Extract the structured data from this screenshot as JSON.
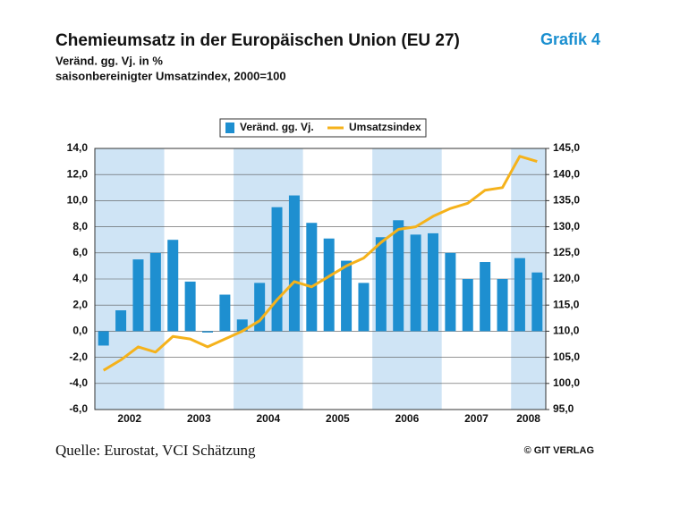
{
  "chart_data": {
    "type": "bar_line",
    "title": "Chemieumsatz in der Europäischen Union (EU 27)",
    "badge": "Grafik 4",
    "subtitle": [
      "Veränd. gg. Vj. in %",
      "saisonbereinigter Umsatzindex, 2000=100"
    ],
    "years": [
      "2002",
      "2003",
      "2004",
      "2005",
      "2006",
      "2007",
      "2008"
    ],
    "categories": [
      null,
      null,
      null,
      null,
      null,
      null,
      null,
      null,
      null,
      null,
      null,
      null,
      null,
      null,
      null,
      null,
      null,
      null,
      null,
      null,
      null,
      null,
      null,
      null,
      null,
      null
    ],
    "series": [
      {
        "name": "Veränd. gg. Vj.",
        "color": "#1e8fd0",
        "type": "bar",
        "values": [
          -1.1,
          1.6,
          5.5,
          6.0,
          7.0,
          3.8,
          -0.1,
          2.8,
          0.9,
          3.7,
          9.5,
          10.4,
          8.3,
          7.1,
          5.4,
          3.7,
          7.2,
          8.5,
          7.4,
          7.5,
          6.0,
          4.0,
          5.3,
          4.0,
          5.6,
          4.5
        ]
      },
      {
        "name": "Umsatzsindex",
        "color": "#f5b21b",
        "type": "line",
        "axis": "y2",
        "values": [
          102.5,
          104.5,
          107,
          106,
          109,
          108.5,
          107,
          108.5,
          110,
          112,
          116,
          119.5,
          118.5,
          120.5,
          122.5,
          124,
          127,
          129.5,
          130,
          132,
          133.5,
          134.5,
          137,
          137.5,
          143.5,
          142.5
        ]
      }
    ],
    "ylim": [
      -6,
      14
    ],
    "yticks": [
      {
        "value": -6,
        "label": "-6,0"
      },
      {
        "value": -4,
        "label": "-4,0"
      },
      {
        "value": -2,
        "label": "-2,0"
      },
      {
        "value": 0,
        "label": "0,0"
      },
      {
        "value": 2,
        "label": "2,0"
      },
      {
        "value": 4,
        "label": "4,0"
      },
      {
        "value": 6,
        "label": "6,0"
      },
      {
        "value": 8,
        "label": "8,0"
      },
      {
        "value": 10,
        "label": "10,0"
      },
      {
        "value": 12,
        "label": "12,0"
      },
      {
        "value": 14,
        "label": "14,0"
      }
    ],
    "y2lim": [
      95,
      145
    ],
    "y2ticks": [
      {
        "value": 95,
        "label": "95,0"
      },
      {
        "value": 100,
        "label": "100,0"
      },
      {
        "value": 105,
        "label": "105,0"
      },
      {
        "value": 110,
        "label": "110,0"
      },
      {
        "value": 115,
        "label": "115,0"
      },
      {
        "value": 120,
        "label": "120,0"
      },
      {
        "value": 125,
        "label": "125,0"
      },
      {
        "value": 130,
        "label": "130,0"
      },
      {
        "value": 135,
        "label": "135,0"
      },
      {
        "value": 140,
        "label": "140,0"
      },
      {
        "value": 145,
        "label": "145,0"
      }
    ],
    "grid": true,
    "source": "Quelle: Eurostat, VCI Schätzung",
    "copyright": "© GIT VERLAG"
  }
}
